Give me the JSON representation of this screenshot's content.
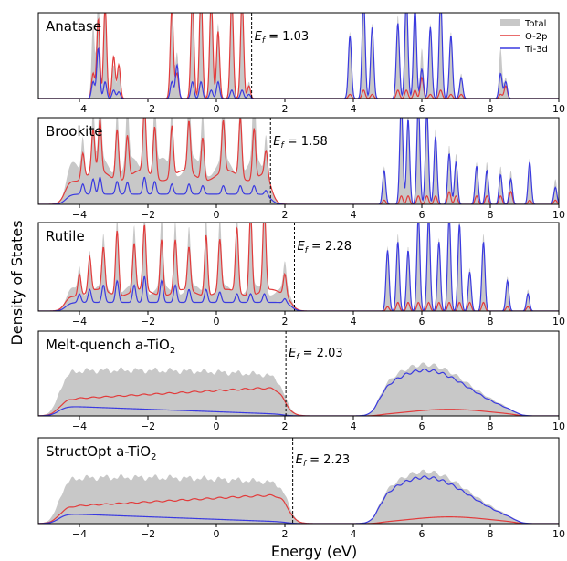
{
  "chart_data": {
    "type": "area",
    "xlabel": "Energy (eV)",
    "ylabel": "Density of States",
    "xlim": [
      -5.2,
      10
    ],
    "xticks": [
      -4,
      -2,
      0,
      2,
      4,
      6,
      8,
      10
    ],
    "legend": {
      "placement": "top-right",
      "entries": [
        {
          "name": "Total",
          "color": "#c8c8c8"
        },
        {
          "name": "O-2p",
          "color": "#e23b3b"
        },
        {
          "name": "Ti-3d",
          "color": "#3a3ae0"
        }
      ]
    },
    "panels": [
      {
        "name": "Anatase",
        "ef_label": "E",
        "ef_sub": "f",
        "ef_text": "= 1.03",
        "ef": 1.03,
        "ylim": [
          0,
          1.0
        ],
        "kind": "spiky",
        "peaks": [
          [
            -3.6,
            0.9,
            0.3,
            0.2
          ],
          [
            -3.45,
            1.3,
            0.95,
            0.6
          ],
          [
            -3.25,
            1.2,
            1.1,
            0.2
          ],
          [
            -3.0,
            0.4,
            0.5,
            0.1
          ],
          [
            -2.85,
            0.35,
            0.4,
            0.08
          ],
          [
            -1.3,
            1.2,
            1.1,
            0.2
          ],
          [
            -1.15,
            0.55,
            0.3,
            0.4
          ],
          [
            -0.7,
            1.3,
            1.2,
            0.2
          ],
          [
            -0.45,
            1.3,
            1.3,
            0.2
          ],
          [
            -0.15,
            1.3,
            1.2,
            0.1
          ],
          [
            0.05,
            0.9,
            0.8,
            0.2
          ],
          [
            0.45,
            1.3,
            1.2,
            0.1
          ],
          [
            0.75,
            1.3,
            1.2,
            0.1
          ],
          [
            0.95,
            0.2,
            0.15,
            0.05
          ],
          [
            3.9,
            0.8,
            0.05,
            0.75
          ],
          [
            4.3,
            1.3,
            0.1,
            1.2
          ],
          [
            4.55,
            0.9,
            0.05,
            0.85
          ],
          [
            5.3,
            1.0,
            0.1,
            0.9
          ],
          [
            5.55,
            1.3,
            0.1,
            1.2
          ],
          [
            5.8,
            1.2,
            0.1,
            1.1
          ],
          [
            6.0,
            0.6,
            0.25,
            0.35
          ],
          [
            6.25,
            0.9,
            0.05,
            0.85
          ],
          [
            6.55,
            1.3,
            0.1,
            1.2
          ],
          [
            6.85,
            0.8,
            0.05,
            0.75
          ],
          [
            7.15,
            0.3,
            0.05,
            0.25
          ],
          [
            8.3,
            0.6,
            0.05,
            0.3
          ],
          [
            8.45,
            0.25,
            0.15,
            0.2
          ]
        ]
      },
      {
        "name": "Brookite",
        "ef_label": "E",
        "ef_sub": "f",
        "ef_text": "= 1.58",
        "ef": 1.58,
        "ylim": [
          0,
          1.0
        ],
        "kind": "mixed",
        "vb": [
          -4.4,
          1.6
        ],
        "vb_total": 0.55,
        "vb_o": 0.4,
        "vb_ti": 0.12,
        "peaks": [
          [
            -3.9,
            0.45,
            0.3,
            0.12
          ],
          [
            -3.6,
            0.7,
            0.5,
            0.18
          ],
          [
            -3.4,
            0.75,
            0.6,
            0.2
          ],
          [
            -2.9,
            0.8,
            0.6,
            0.15
          ],
          [
            -2.6,
            0.7,
            0.5,
            0.14
          ],
          [
            -2.1,
            0.95,
            0.75,
            0.2
          ],
          [
            -1.8,
            0.8,
            0.6,
            0.15
          ],
          [
            -1.3,
            0.75,
            0.6,
            0.12
          ],
          [
            -0.8,
            0.85,
            0.6,
            0.12
          ],
          [
            -0.4,
            0.7,
            0.5,
            0.1
          ],
          [
            0.2,
            0.75,
            0.6,
            0.1
          ],
          [
            0.7,
            0.95,
            0.7,
            0.1
          ],
          [
            1.1,
            0.9,
            0.6,
            0.1
          ],
          [
            1.45,
            0.5,
            0.3,
            0.06
          ],
          [
            4.9,
            0.45,
            0.05,
            0.4
          ],
          [
            5.4,
            1.3,
            0.1,
            1.2
          ],
          [
            5.6,
            1.1,
            0.1,
            1.0
          ],
          [
            5.9,
            1.3,
            0.1,
            1.2
          ],
          [
            6.15,
            1.2,
            0.1,
            1.1
          ],
          [
            6.4,
            0.9,
            0.1,
            0.8
          ],
          [
            6.8,
            0.7,
            0.15,
            0.6
          ],
          [
            7.0,
            0.6,
            0.1,
            0.5
          ],
          [
            7.6,
            0.5,
            0.1,
            0.45
          ],
          [
            7.9,
            0.5,
            0.1,
            0.4
          ],
          [
            8.3,
            0.45,
            0.1,
            0.35
          ],
          [
            8.6,
            0.4,
            0.15,
            0.3
          ],
          [
            9.15,
            0.55,
            0.05,
            0.5
          ],
          [
            9.9,
            0.3,
            0.05,
            0.2
          ]
        ]
      },
      {
        "name": "Rutile",
        "ef_label": "E",
        "ef_sub": "f",
        "ef_text": "= 2.28",
        "ef": 2.28,
        "ylim": [
          0,
          1.0
        ],
        "kind": "mixed",
        "vb": [
          -4.4,
          2.2
        ],
        "vb_total": 0.3,
        "vb_o": 0.25,
        "vb_ti": 0.1,
        "peaks": [
          [
            -4.0,
            0.3,
            0.25,
            0.1
          ],
          [
            -3.7,
            0.5,
            0.4,
            0.15
          ],
          [
            -3.3,
            0.6,
            0.5,
            0.2
          ],
          [
            -2.9,
            0.9,
            0.75,
            0.25
          ],
          [
            -2.4,
            0.7,
            0.55,
            0.2
          ],
          [
            -2.1,
            0.95,
            0.75,
            0.3
          ],
          [
            -1.6,
            0.8,
            0.65,
            0.25
          ],
          [
            -1.2,
            0.85,
            0.6,
            0.2
          ],
          [
            -0.8,
            0.7,
            0.5,
            0.15
          ],
          [
            -0.3,
            0.9,
            0.7,
            0.15
          ],
          [
            0.1,
            0.8,
            0.6,
            0.12
          ],
          [
            0.6,
            0.95,
            0.75,
            0.1
          ],
          [
            1.0,
            1.05,
            0.95,
            0.1
          ],
          [
            1.4,
            1.0,
            0.95,
            0.1
          ],
          [
            2.0,
            0.3,
            0.25,
            0.05
          ],
          [
            5.0,
            0.75,
            0.05,
            0.7
          ],
          [
            5.3,
            0.9,
            0.1,
            0.8
          ],
          [
            5.6,
            0.75,
            0.1,
            0.7
          ],
          [
            5.9,
            1.2,
            0.1,
            1.1
          ],
          [
            6.2,
            1.2,
            0.1,
            1.1
          ],
          [
            6.5,
            0.85,
            0.1,
            0.8
          ],
          [
            6.8,
            1.2,
            0.1,
            1.1
          ],
          [
            7.1,
            1.1,
            0.1,
            1.0
          ],
          [
            7.4,
            0.5,
            0.1,
            0.45
          ],
          [
            7.8,
            0.9,
            0.1,
            0.8
          ],
          [
            8.5,
            0.4,
            0.05,
            0.35
          ],
          [
            9.1,
            0.25,
            0.05,
            0.2
          ]
        ]
      },
      {
        "name": "Melt-quench a-TiO",
        "name_sub": "2",
        "ef_label": "E",
        "ef_sub": "f",
        "ef_text": "= 2.03",
        "ef": 2.03,
        "ylim": [
          0,
          1.0
        ],
        "kind": "smooth",
        "vb": [
          -4.6,
          2.0
        ],
        "vb_total": 0.55,
        "vb_o_start": 0.2,
        "vb_o_end": 0.35,
        "vb_ti_start": 0.12,
        "vb_ti_end": 0.02,
        "cb": [
          4.7,
          8.8
        ],
        "cb_total": 0.62,
        "cb_ti": 0.55,
        "cb_o": 0.08
      },
      {
        "name": "StructOpt a-TiO",
        "name_sub": "2",
        "ef_label": "E",
        "ef_sub": "f",
        "ef_text": "= 2.23",
        "ef": 2.23,
        "ylim": [
          0,
          1.0
        ],
        "kind": "smooth",
        "vb": [
          -4.6,
          2.1
        ],
        "vb_total": 0.55,
        "vb_o_start": 0.2,
        "vb_o_end": 0.35,
        "vb_ti_start": 0.12,
        "vb_ti_end": 0.02,
        "cb": [
          4.7,
          8.8
        ],
        "cb_total": 0.62,
        "cb_ti": 0.55,
        "cb_o": 0.08
      }
    ]
  },
  "colors": {
    "total": "#c8c8c8",
    "o2p": "#e23b3b",
    "ti3d": "#3a3ae0"
  }
}
